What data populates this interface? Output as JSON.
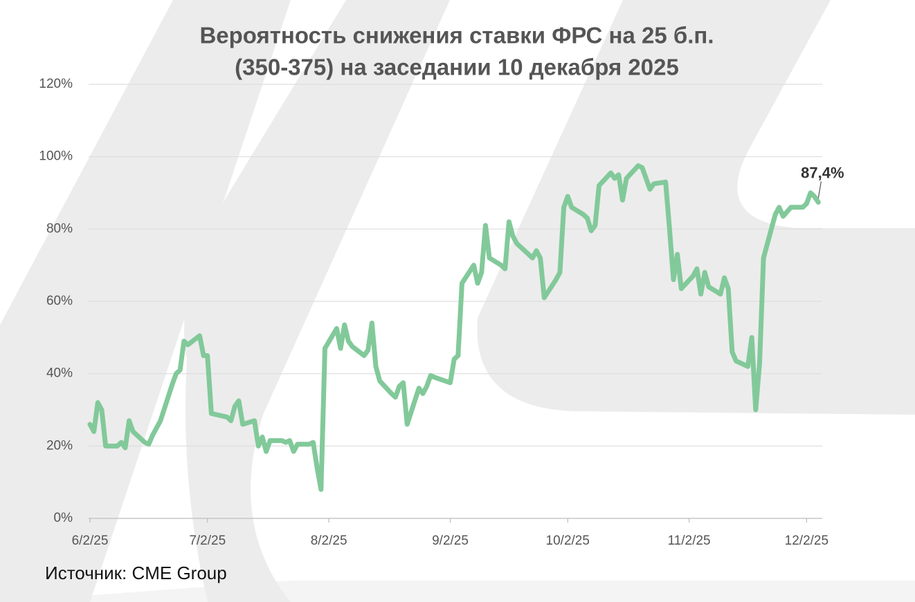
{
  "chart_data": {
    "type": "line",
    "title": [
      "Вероятность снижения ставки ФРС на 25 б.п.",
      "(350-375) на заседании 10 декабря 2025"
    ],
    "source": "Источник: CME Group",
    "color": "#82c99a",
    "grid": true,
    "x": [
      "2025-06-02",
      "2025-06-03",
      "2025-06-04",
      "2025-06-05",
      "2025-06-06",
      "2025-06-09",
      "2025-06-10",
      "2025-06-11",
      "2025-06-12",
      "2025-06-13",
      "2025-06-16",
      "2025-06-17",
      "2025-06-18",
      "2025-06-20",
      "2025-06-23",
      "2025-06-24",
      "2025-06-25",
      "2025-06-26",
      "2025-06-27",
      "2025-06-30",
      "2025-07-01",
      "2025-07-02",
      "2025-07-03",
      "2025-07-07",
      "2025-07-08",
      "2025-07-09",
      "2025-07-10",
      "2025-07-11",
      "2025-07-14",
      "2025-07-15",
      "2025-07-16",
      "2025-07-17",
      "2025-07-18",
      "2025-07-21",
      "2025-07-22",
      "2025-07-23",
      "2025-07-24",
      "2025-07-25",
      "2025-07-28",
      "2025-07-29",
      "2025-07-30",
      "2025-07-31",
      "2025-08-01",
      "2025-08-04",
      "2025-08-05",
      "2025-08-06",
      "2025-08-07",
      "2025-08-08",
      "2025-08-11",
      "2025-08-12",
      "2025-08-13",
      "2025-08-14",
      "2025-08-15",
      "2025-08-18",
      "2025-08-19",
      "2025-08-20",
      "2025-08-21",
      "2025-08-22",
      "2025-08-25",
      "2025-08-26",
      "2025-08-27",
      "2025-08-28",
      "2025-08-29",
      "2025-09-02",
      "2025-09-03",
      "2025-09-04",
      "2025-09-05",
      "2025-09-08",
      "2025-09-09",
      "2025-09-10",
      "2025-09-11",
      "2025-09-12",
      "2025-09-15",
      "2025-09-16",
      "2025-09-17",
      "2025-09-18",
      "2025-09-19",
      "2025-09-22",
      "2025-09-23",
      "2025-09-24",
      "2025-09-25",
      "2025-09-26",
      "2025-09-29",
      "2025-09-30",
      "2025-10-01",
      "2025-10-02",
      "2025-10-03",
      "2025-10-06",
      "2025-10-07",
      "2025-10-08",
      "2025-10-09",
      "2025-10-10",
      "2025-10-13",
      "2025-10-14",
      "2025-10-15",
      "2025-10-16",
      "2025-10-17",
      "2025-10-20",
      "2025-10-21",
      "2025-10-22",
      "2025-10-23",
      "2025-10-24",
      "2025-10-27",
      "2025-10-28",
      "2025-10-29",
      "2025-10-30",
      "2025-10-31",
      "2025-11-03",
      "2025-11-04",
      "2025-11-05",
      "2025-11-06",
      "2025-11-07",
      "2025-11-10",
      "2025-11-11",
      "2025-11-12",
      "2025-11-13",
      "2025-11-14",
      "2025-11-17",
      "2025-11-18",
      "2025-11-19",
      "2025-11-20",
      "2025-11-21",
      "2025-11-24",
      "2025-11-25",
      "2025-11-26",
      "2025-11-28",
      "2025-12-01",
      "2025-12-02",
      "2025-12-03",
      "2025-12-04",
      "2025-12-05"
    ],
    "values": [
      26,
      24,
      32,
      30,
      20,
      20,
      21,
      19.5,
      27,
      24,
      21,
      20.5,
      23,
      27,
      37,
      40,
      41,
      49,
      48,
      50.5,
      45,
      45,
      29,
      28,
      27,
      31,
      32.5,
      26,
      27,
      20,
      22.5,
      18.5,
      21.5,
      21.5,
      21,
      21.5,
      18.5,
      20.5,
      20.5,
      21,
      14,
      8,
      47,
      52.5,
      47,
      53.5,
      49,
      47.5,
      45,
      46.5,
      54,
      42,
      38,
      34.5,
      33.5,
      36.5,
      37.5,
      26,
      36,
      34.5,
      36.5,
      39.5,
      39,
      37.5,
      44,
      45,
      65,
      70,
      65,
      68,
      81,
      72,
      70,
      69,
      82,
      78,
      76,
      73,
      72,
      74,
      72,
      61,
      66,
      68,
      86,
      89,
      86,
      84,
      83,
      79.5,
      81,
      92,
      95.5,
      94,
      95,
      88,
      94,
      97.5,
      97,
      94,
      91,
      92.5,
      93,
      80,
      66,
      73,
      63.5,
      67,
      69,
      62,
      68,
      64,
      62,
      66.5,
      63.5,
      46,
      43.5,
      42,
      50,
      30,
      43,
      72,
      84,
      86,
      83.5,
      86,
      86,
      87,
      90,
      89,
      87.4
    ],
    "annotation": {
      "label": "87,4%",
      "value": 87.4,
      "x": "2025-12-05"
    },
    "xlim": [
      "2025-06-02",
      "2025-12-06"
    ],
    "xticks": [
      {
        "value": "2025-06-02",
        "label": "6/2/25"
      },
      {
        "value": "2025-07-02",
        "label": "7/2/25"
      },
      {
        "value": "2025-08-02",
        "label": "8/2/25"
      },
      {
        "value": "2025-09-02",
        "label": "9/2/25"
      },
      {
        "value": "2025-10-02",
        "label": "10/2/25"
      },
      {
        "value": "2025-11-02",
        "label": "11/2/25"
      },
      {
        "value": "2025-12-02",
        "label": "12/2/25"
      }
    ],
    "ylim": [
      0,
      120
    ],
    "yticks": [
      {
        "value": 0,
        "label": "0%"
      },
      {
        "value": 20,
        "label": "20%"
      },
      {
        "value": 40,
        "label": "40%"
      },
      {
        "value": 60,
        "label": "60%"
      },
      {
        "value": 80,
        "label": "80%"
      },
      {
        "value": 100,
        "label": "100%"
      },
      {
        "value": 120,
        "label": "120%"
      }
    ]
  }
}
